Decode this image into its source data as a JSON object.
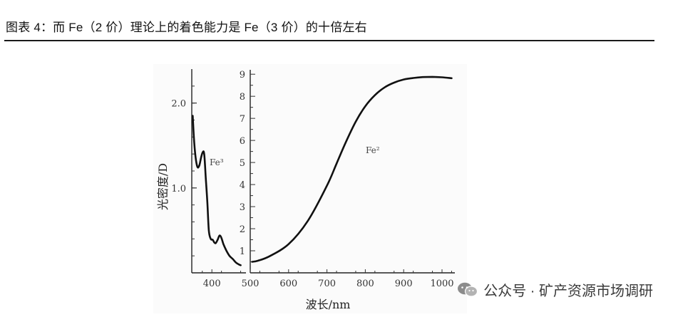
{
  "figure": {
    "title": "图表 4：而 Fe（2 价）理论上的着色能力是 Fe（3 价）的十倍左右"
  },
  "watermark": {
    "text": "公众号 · 矿产资源市场调研",
    "icon": "wechat-icon"
  },
  "chart_data": {
    "type": "line",
    "xlabel": "波长/nm",
    "x_ticks": [
      "400",
      "500",
      "600",
      "700",
      "800",
      "900",
      "1000"
    ],
    "xlim": [
      350,
      1050
    ],
    "panels": [
      {
        "name": "Fe3",
        "series_label": "Fe³",
        "ylabel": "光密度/D",
        "ylim": [
          0,
          2.4
        ],
        "y_ticks": [
          1.0,
          2.0
        ],
        "y_tick_labels": [
          "1.0",
          "2.0"
        ],
        "x": [
          350,
          353,
          357,
          362,
          367,
          372,
          376,
          380,
          384,
          388,
          392,
          397,
          402,
          406,
          410,
          415,
          420,
          425,
          430,
          438,
          446,
          455,
          463,
          470,
          475
        ],
        "y": [
          1.85,
          1.6,
          1.38,
          1.25,
          1.26,
          1.36,
          1.42,
          1.4,
          1.12,
          0.85,
          0.5,
          0.4,
          0.39,
          0.36,
          0.35,
          0.39,
          0.44,
          0.41,
          0.34,
          0.26,
          0.2,
          0.16,
          0.12,
          0.1,
          0.09
        ]
      },
      {
        "name": "Fe2",
        "series_label": "Fe²",
        "ylim": [
          0,
          9.2
        ],
        "y_ticks": [
          1,
          2,
          3,
          4,
          5,
          6,
          7,
          8,
          9
        ],
        "y_tick_labels": [
          "1",
          "2",
          "3",
          "4",
          "5",
          "6",
          "7",
          "8",
          "9"
        ],
        "x": [
          505,
          520,
          550,
          600,
          650,
          700,
          725,
          750,
          775,
          800,
          825,
          850,
          875,
          900,
          925,
          950,
          975,
          1000,
          1025
        ],
        "y": [
          0.5,
          0.55,
          0.75,
          1.3,
          2.35,
          3.95,
          4.95,
          5.95,
          6.85,
          7.55,
          8.05,
          8.4,
          8.62,
          8.76,
          8.83,
          8.87,
          8.88,
          8.86,
          8.82
        ]
      }
    ]
  }
}
